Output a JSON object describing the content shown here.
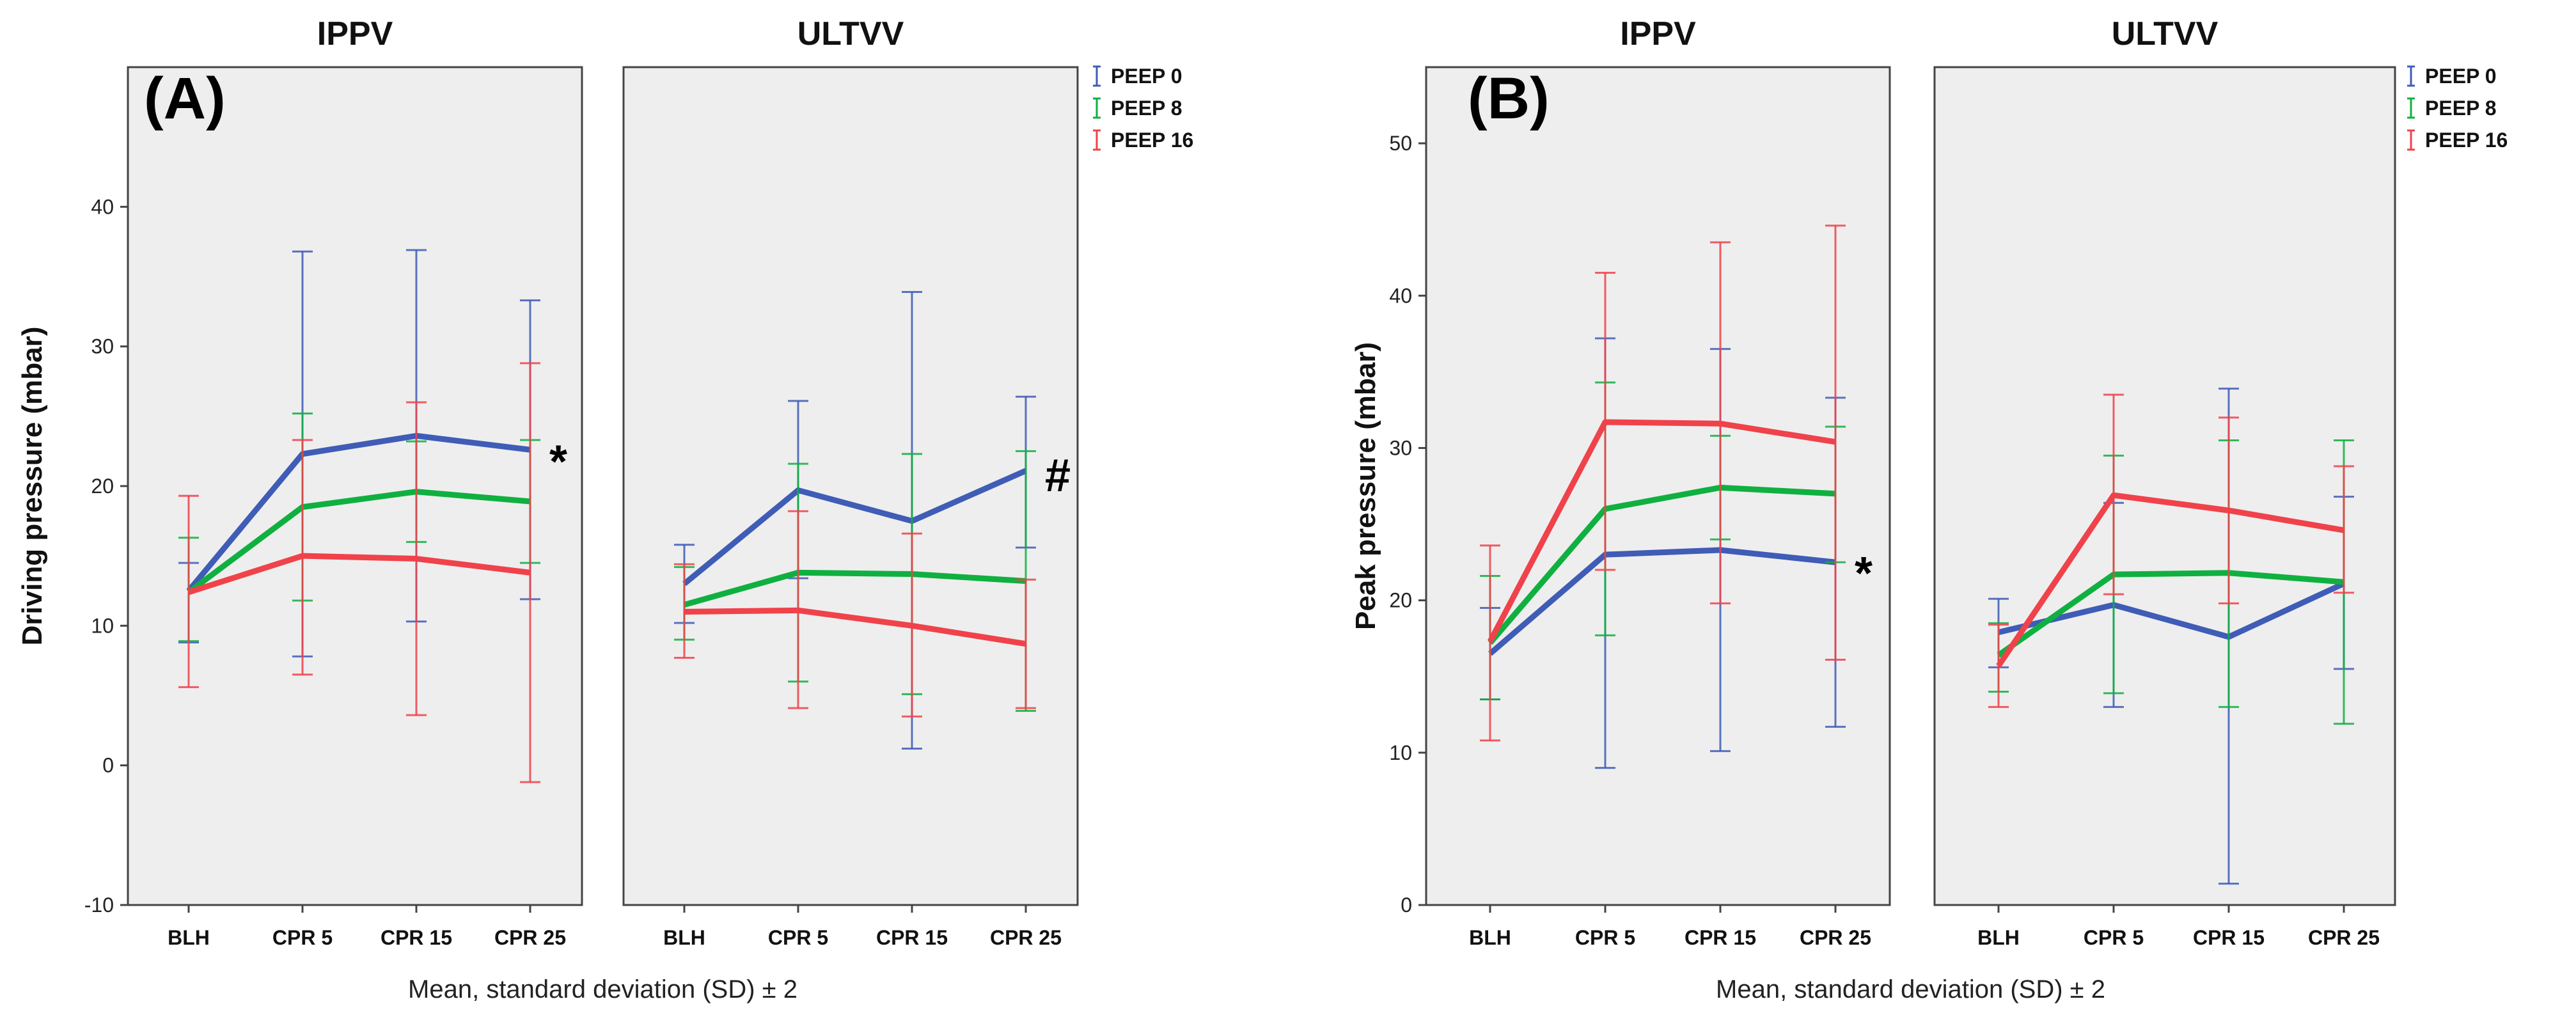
{
  "chart_data": [
    {
      "type": "line",
      "panel_label": "(A)",
      "ylabel": "Driving pressure (mbar)",
      "xlabel": "Mean, standard deviation (SD) ± 2",
      "ylim": [
        -10,
        50
      ],
      "yticks": [
        -10,
        0,
        10,
        20,
        30,
        40
      ],
      "categories": [
        "BLH",
        "CPR 5",
        "CPR 15",
        "CPR 25"
      ],
      "legend": [
        {
          "name": "PEEP 0",
          "color": "#3f5cb6"
        },
        {
          "name": "PEEP 8",
          "color": "#10b040"
        },
        {
          "name": "PEEP 16",
          "color": "#f0424a"
        }
      ],
      "subplots": [
        {
          "title": "IPPV",
          "annotation": {
            "text": "*",
            "category": "CPR 25",
            "value": 22
          },
          "series": [
            {
              "name": "PEEP 0",
              "color": "#3f5cb6",
              "values": [
                12.5,
                22.3,
                23.6,
                22.6
              ],
              "lower": [
                8.8,
                7.8,
                10.3,
                11.9
              ],
              "upper": [
                14.5,
                36.8,
                36.9,
                33.3
              ]
            },
            {
              "name": "PEEP 8",
              "color": "#10b040",
              "values": [
                12.4,
                18.5,
                19.6,
                18.9
              ],
              "lower": [
                8.9,
                11.8,
                16.0,
                14.5
              ],
              "upper": [
                16.3,
                25.2,
                23.2,
                23.3
              ]
            },
            {
              "name": "PEEP 16",
              "color": "#f0424a",
              "values": [
                12.4,
                15.0,
                14.8,
                13.8
              ],
              "lower": [
                5.6,
                6.5,
                3.6,
                -1.2
              ],
              "upper": [
                19.3,
                23.3,
                26.0,
                28.8
              ]
            }
          ]
        },
        {
          "title": "ULTVV",
          "annotation": {
            "text": "#",
            "category": "CPR 25",
            "value": 21
          },
          "series": [
            {
              "name": "PEEP 0",
              "color": "#3f5cb6",
              "values": [
                13.0,
                19.7,
                17.5,
                21.1
              ],
              "lower": [
                10.2,
                13.4,
                1.2,
                15.6
              ],
              "upper": [
                15.8,
                26.1,
                33.9,
                26.4
              ]
            },
            {
              "name": "PEEP 8",
              "color": "#10b040",
              "values": [
                11.5,
                13.8,
                13.7,
                13.2
              ],
              "lower": [
                9.0,
                6.0,
                5.1,
                3.9
              ],
              "upper": [
                14.2,
                21.6,
                22.3,
                22.5
              ]
            },
            {
              "name": "PEEP 16",
              "color": "#f0424a",
              "values": [
                11.0,
                11.1,
                10.0,
                8.7
              ],
              "lower": [
                7.7,
                4.1,
                3.5,
                4.1
              ],
              "upper": [
                14.4,
                18.2,
                16.6,
                13.3
              ]
            }
          ]
        }
      ]
    },
    {
      "type": "line",
      "panel_label": "(B)",
      "ylabel": "Peak pressure (mbar)",
      "xlabel": "Mean, standard deviation (SD) ± 2",
      "ylim": [
        0,
        55
      ],
      "yticks": [
        0,
        10,
        20,
        30,
        40,
        50
      ],
      "categories": [
        "BLH",
        "CPR 5",
        "CPR 15",
        "CPR 25"
      ],
      "legend": [
        {
          "name": "PEEP 0",
          "color": "#3f5cb6"
        },
        {
          "name": "PEEP 8",
          "color": "#10b040"
        },
        {
          "name": "PEEP 16",
          "color": "#f0424a"
        }
      ],
      "subplots": [
        {
          "title": "IPPV",
          "annotation": {
            "text": "*",
            "category": "CPR 25",
            "value": 22
          },
          "series": [
            {
              "name": "PEEP 0",
              "color": "#3f5cb6",
              "values": [
                16.5,
                23.0,
                23.3,
                22.5
              ],
              "lower": [
                13.5,
                9.0,
                10.1,
                11.7
              ],
              "upper": [
                19.5,
                37.2,
                36.5,
                33.3
              ]
            },
            {
              "name": "PEEP 8",
              "color": "#10b040",
              "values": [
                17.2,
                26.0,
                27.4,
                27.0
              ],
              "lower": [
                13.5,
                17.7,
                24.0,
                22.5
              ],
              "upper": [
                21.6,
                34.3,
                30.8,
                31.4
              ]
            },
            {
              "name": "PEEP 16",
              "color": "#f0424a",
              "values": [
                17.3,
                31.7,
                31.6,
                30.4
              ],
              "lower": [
                10.8,
                22.0,
                19.8,
                16.1
              ],
              "upper": [
                23.6,
                41.5,
                43.5,
                44.6
              ]
            }
          ]
        },
        {
          "title": "ULTVV",
          "annotation": null,
          "series": [
            {
              "name": "PEEP 0",
              "color": "#3f5cb6",
              "values": [
                17.9,
                19.7,
                17.6,
                21.1
              ],
              "lower": [
                15.6,
                13.0,
                1.4,
                15.5
              ],
              "upper": [
                20.1,
                26.4,
                33.9,
                26.8
              ]
            },
            {
              "name": "PEEP 8",
              "color": "#10b040",
              "values": [
                16.4,
                21.7,
                21.8,
                21.2
              ],
              "lower": [
                14.0,
                13.9,
                13.0,
                11.9
              ],
              "upper": [
                18.5,
                29.5,
                30.5,
                30.5
              ]
            },
            {
              "name": "PEEP 16",
              "color": "#f0424a",
              "values": [
                15.7,
                26.9,
                25.9,
                24.6
              ],
              "lower": [
                13.0,
                20.4,
                19.8,
                20.5
              ],
              "upper": [
                18.4,
                33.5,
                32.0,
                28.8
              ]
            }
          ]
        }
      ]
    }
  ]
}
